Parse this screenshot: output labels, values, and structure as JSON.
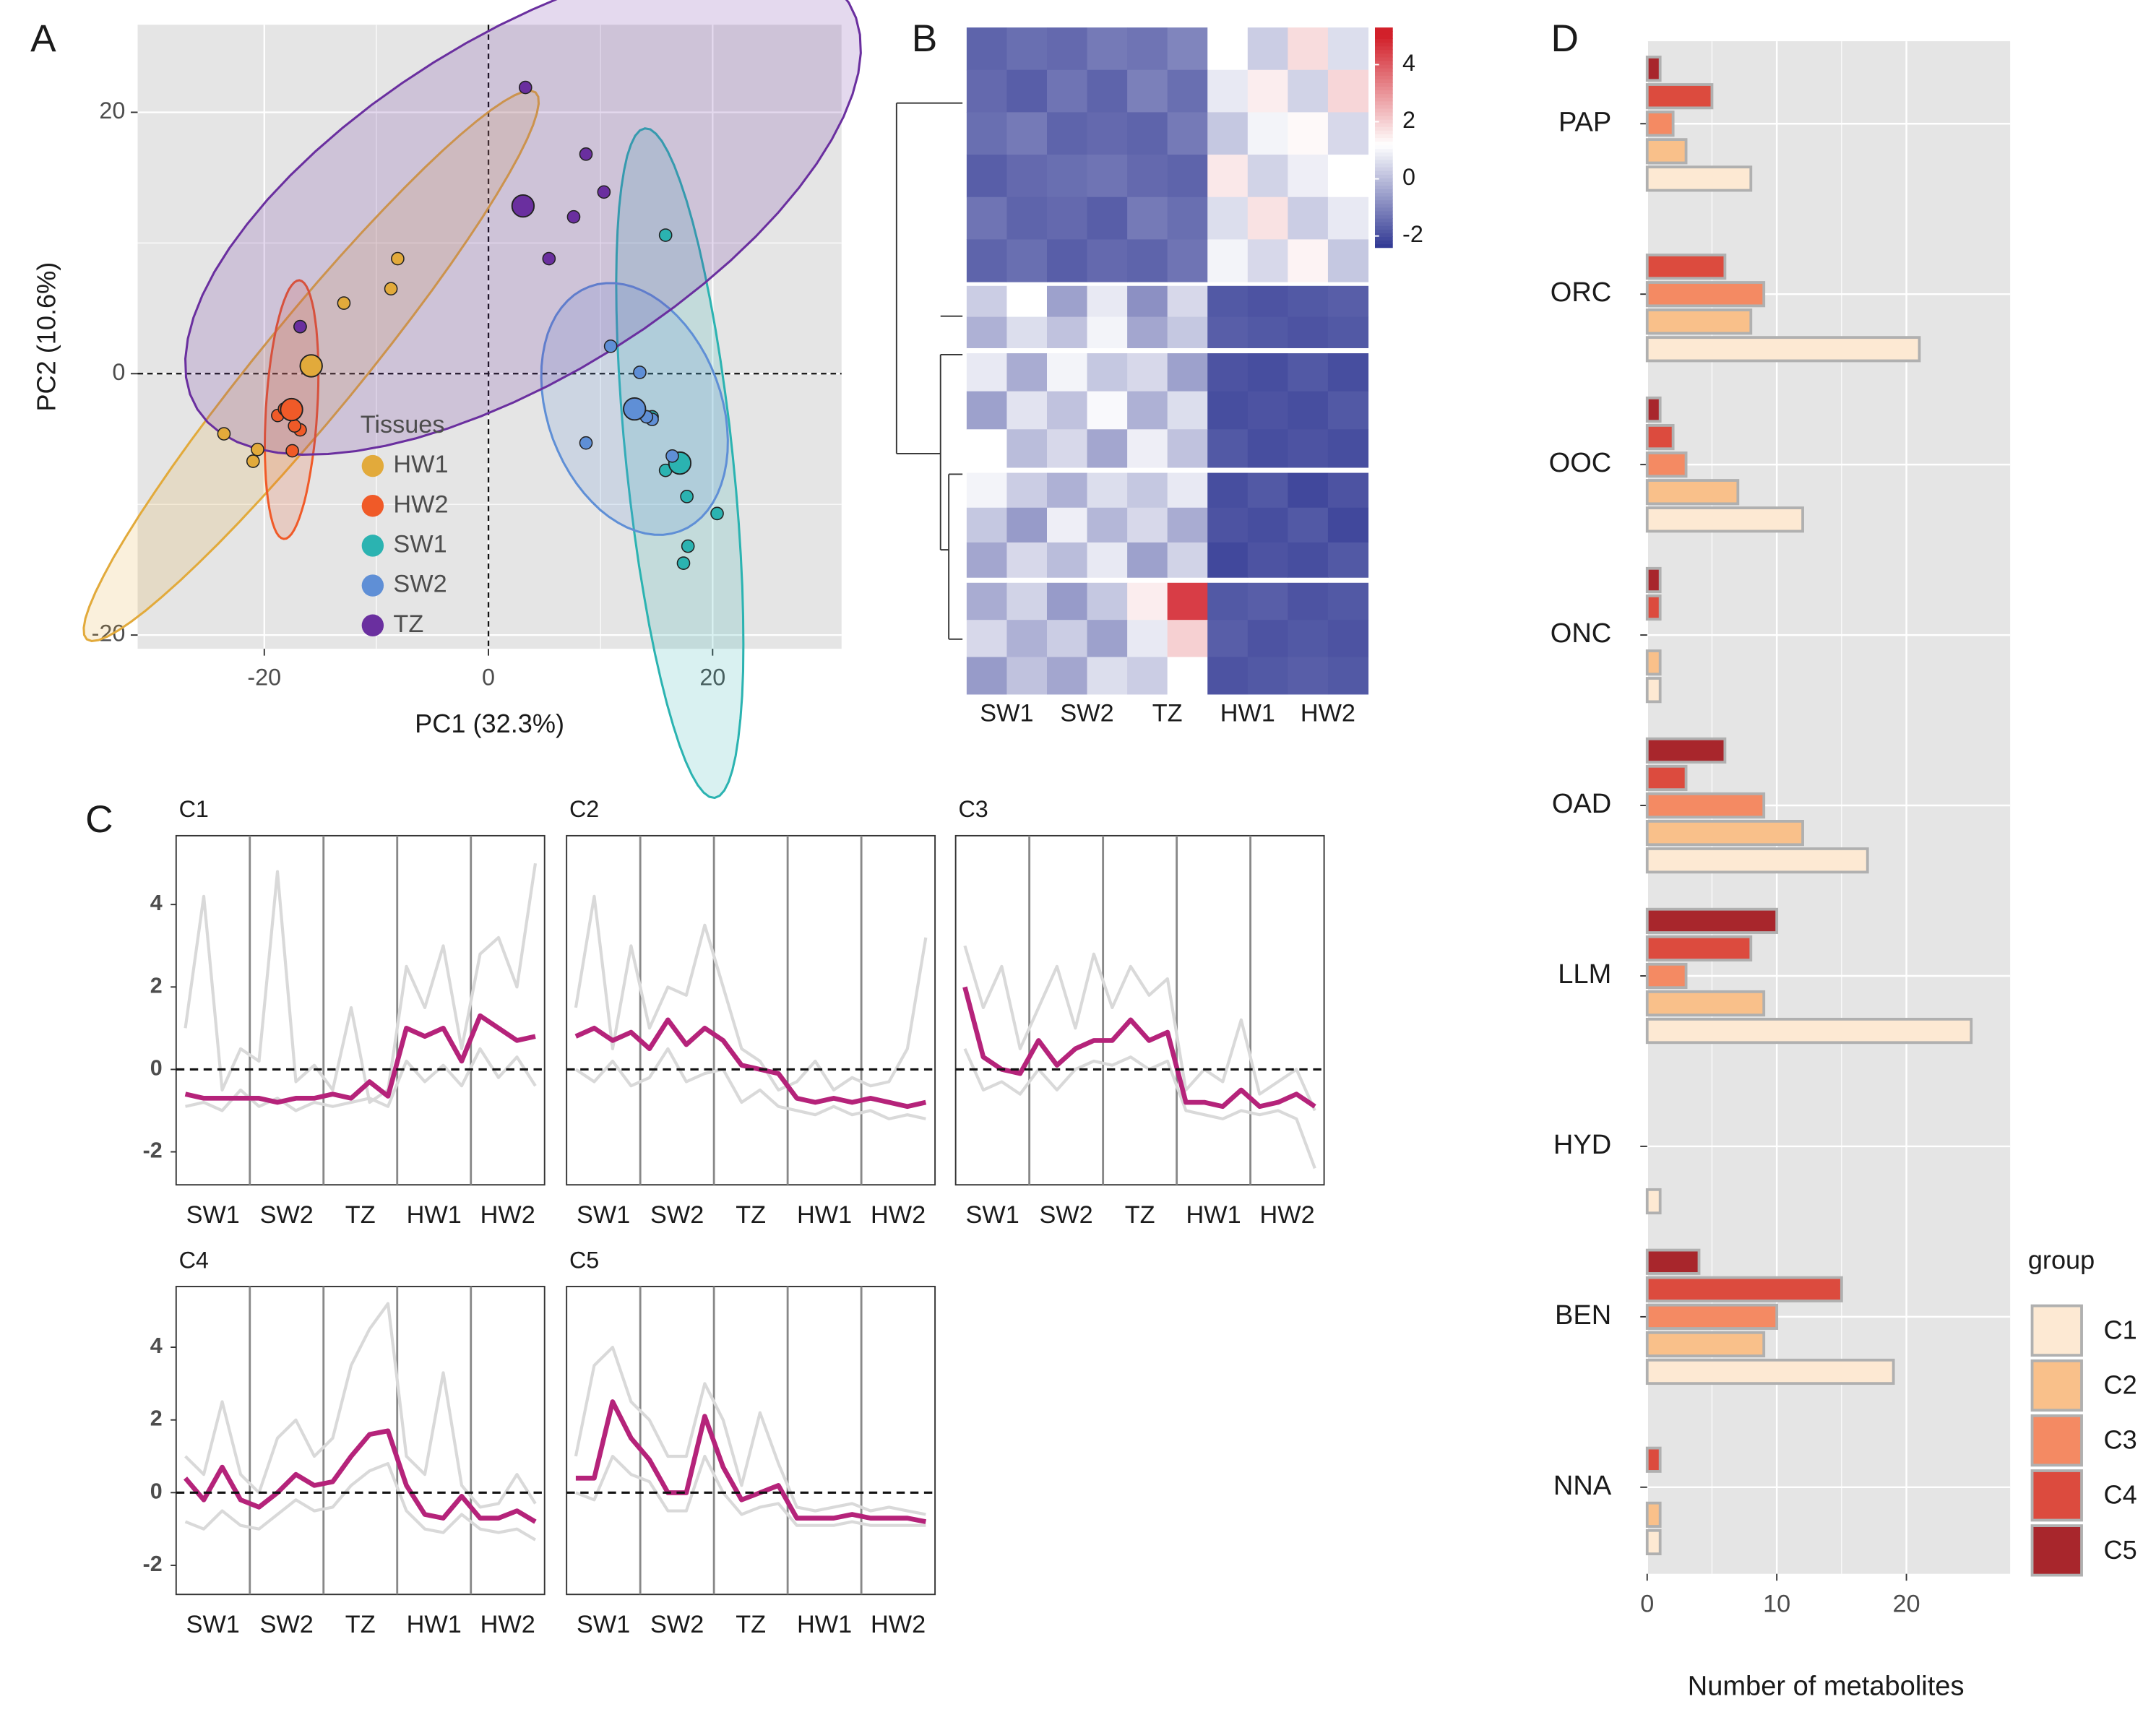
{
  "chart_data": [
    {
      "type": "scatter",
      "panel": "A",
      "xlabel": "PC1 (32.3%)",
      "ylabel": "PC2 (10.6%)",
      "xlim": [
        -31.3,
        31.5
      ],
      "ylim": [
        -21.05,
        26.7
      ],
      "xticks": [
        -20,
        0,
        20
      ],
      "yticks": [
        -20,
        0,
        20
      ],
      "grid": true,
      "legend_title": "Tissues",
      "legend": "bottom-left",
      "series": [
        {
          "name": "HW1",
          "color": "#e2aa3b",
          "x": [
            -23.6,
            -20.6,
            -21.0,
            -8.1,
            -8.7,
            -12.9
          ],
          "y": [
            -4.6,
            -5.8,
            -6.7,
            8.8,
            6.5,
            5.4
          ]
        },
        {
          "name": "HW2",
          "color": "#f05a28",
          "x": [
            -16.8,
            -18.8,
            -18.2,
            -16.8,
            -17.5,
            -17.3
          ],
          "y": [
            3.6,
            -3.2,
            -2.7,
            -4.3,
            -5.9,
            -4.0
          ]
        },
        {
          "name": "SW1",
          "color": "#2bb3b1",
          "x": [
            15.8,
            14.6,
            17.7,
            15.8,
            20.4,
            17.8,
            17.4
          ],
          "y": [
            10.6,
            -3.3,
            -9.4,
            -7.4,
            -10.7,
            -13.2,
            -14.5
          ]
        },
        {
          "name": "SW2",
          "color": "#5f8fd6",
          "x": [
            10.9,
            13.5,
            8.7,
            14.6,
            14.1,
            16.4
          ],
          "y": [
            2.1,
            0.1,
            -5.3,
            -3.5,
            -3.3,
            -6.3
          ]
        },
        {
          "name": "TZ",
          "color": "#6a2f9f",
          "x": [
            3.3,
            8.7,
            10.3,
            7.6,
            5.4,
            -16.8
          ],
          "y": [
            21.9,
            16.8,
            13.9,
            12.0,
            8.8,
            3.6
          ]
        }
      ]
    },
    {
      "type": "heatmap",
      "panel": "B",
      "x_labels": [
        "SW1",
        "SW2",
        "TZ",
        "HW1",
        "HW2"
      ],
      "clim": [
        -2.4,
        5.3
      ],
      "cticks": [
        -2,
        0,
        2,
        4
      ],
      "colorscale": [
        [
          -2.5,
          "#2a3290"
        ],
        [
          1.2,
          "#ffffff"
        ],
        [
          5,
          "#d2202a"
        ]
      ],
      "blocks": [
        [
          [
            -1.6,
            -1.4,
            -1.5,
            -1.2,
            -1.3,
            -1.0,
            1.2,
            0.3,
            1.8,
            0.6
          ],
          [
            -1.5,
            -1.7,
            -1.3,
            -1.6,
            -1.1,
            -1.4,
            0.8,
            1.5,
            0.4,
            1.9
          ],
          [
            -1.4,
            -1.2,
            -1.6,
            -1.5,
            -1.6,
            -1.2,
            0.2,
            1.0,
            1.3,
            0.5
          ],
          [
            -1.7,
            -1.5,
            -1.4,
            -1.3,
            -1.5,
            -1.6,
            1.6,
            0.4,
            0.9,
            1.2
          ],
          [
            -1.3,
            -1.6,
            -1.5,
            -1.7,
            -1.2,
            -1.4,
            0.6,
            1.7,
            0.3,
            0.8
          ],
          [
            -1.6,
            -1.4,
            -1.7,
            -1.5,
            -1.6,
            -1.3,
            1.0,
            0.5,
            1.4,
            0.2
          ]
        ],
        [
          [
            0.3,
            1.2,
            -0.5,
            0.8,
            -0.8,
            0.5,
            -1.8,
            -1.9,
            -1.8,
            -1.7
          ],
          [
            -0.2,
            0.6,
            0.1,
            1.0,
            -0.4,
            0.2,
            -1.7,
            -1.8,
            -1.9,
            -1.8
          ]
        ],
        [
          [
            0.8,
            -0.3,
            1.0,
            0.2,
            0.5,
            -0.5,
            -1.9,
            -2.0,
            -1.8,
            -2.0
          ],
          [
            -0.5,
            0.7,
            0.1,
            1.1,
            -0.2,
            0.6,
            -2.0,
            -1.9,
            -2.0,
            -1.8
          ],
          [
            1.2,
            0.0,
            0.5,
            -0.4,
            0.9,
            0.1,
            -1.8,
            -2.0,
            -1.9,
            -2.0
          ]
        ],
        [
          [
            1.0,
            0.3,
            -0.2,
            0.6,
            0.2,
            0.8,
            -2.0,
            -1.8,
            -2.1,
            -1.9
          ],
          [
            0.2,
            -0.6,
            0.9,
            -0.1,
            0.5,
            -0.3,
            -1.9,
            -2.0,
            -1.8,
            -2.1
          ],
          [
            -0.4,
            0.5,
            0.0,
            0.8,
            -0.5,
            0.4,
            -2.1,
            -1.9,
            -2.0,
            -1.8
          ]
        ],
        [
          [
            -0.3,
            0.4,
            -0.6,
            0.2,
            1.5,
            4.5,
            -1.8,
            -1.7,
            -1.9,
            -1.8
          ],
          [
            0.5,
            -0.2,
            0.3,
            -0.5,
            0.8,
            2.0,
            -1.7,
            -1.9,
            -1.8,
            -1.9
          ],
          [
            -0.6,
            0.1,
            -0.4,
            0.6,
            0.3,
            1.2,
            -1.9,
            -1.8,
            -1.7,
            -1.8
          ]
        ]
      ]
    },
    {
      "type": "line",
      "panel": "C",
      "title": "C1",
      "groups": [
        "SW1",
        "SW2",
        "TZ",
        "HW1",
        "HW2"
      ],
      "ylim": [
        -2.8,
        5.67
      ],
      "yticks": [
        -2,
        0,
        2,
        4
      ],
      "series": [
        {
          "color": "#d9d9d9",
          "values": [
            1.0,
            4.2,
            -0.5,
            0.5,
            0.2,
            4.8,
            -0.3,
            0.1,
            -0.5,
            1.5,
            -0.8,
            -0.5,
            2.5,
            1.5,
            3.0,
            0.5,
            2.8,
            3.2,
            2.0,
            5.0
          ]
        },
        {
          "color": "#d9d9d9",
          "values": [
            -0.9,
            -0.8,
            -1.0,
            -0.5,
            -0.9,
            -0.7,
            -1.0,
            -0.8,
            -0.9,
            -0.8,
            -0.7,
            -0.9,
            0.2,
            -0.3,
            0.1,
            -0.4,
            0.5,
            -0.2,
            0.3,
            -0.4
          ]
        },
        {
          "color": "#b5237a",
          "values": [
            -0.6,
            -0.7,
            -0.7,
            -0.7,
            -0.7,
            -0.8,
            -0.7,
            -0.7,
            -0.6,
            -0.7,
            -0.3,
            -0.65,
            1.0,
            0.8,
            1.0,
            0.2,
            1.3,
            1.0,
            0.7,
            0.8
          ]
        }
      ]
    },
    {
      "type": "line",
      "title": "C2",
      "groups": [
        "SW1",
        "SW2",
        "TZ",
        "HW1",
        "HW2"
      ],
      "ylim": [
        -2.8,
        5.67
      ],
      "series": [
        {
          "color": "#d9d9d9",
          "values": [
            1.5,
            4.2,
            0.5,
            3.0,
            1.0,
            2.0,
            1.8,
            3.5,
            2.0,
            0.5,
            0.2,
            -0.5,
            -0.3,
            0.2,
            -0.5,
            -0.2,
            -0.4,
            -0.3,
            0.5,
            3.2
          ]
        },
        {
          "color": "#d9d9d9",
          "values": [
            0.0,
            -0.3,
            0.2,
            -0.4,
            -0.2,
            0.5,
            -0.3,
            -0.1,
            0.0,
            -0.8,
            -0.5,
            -0.9,
            -1.0,
            -1.1,
            -0.9,
            -1.1,
            -1.0,
            -1.2,
            -1.1,
            -1.2
          ]
        },
        {
          "color": "#b5237a",
          "values": [
            0.8,
            1.0,
            0.7,
            0.9,
            0.5,
            1.2,
            0.6,
            1.0,
            0.7,
            0.1,
            0.0,
            -0.1,
            -0.7,
            -0.8,
            -0.7,
            -0.8,
            -0.7,
            -0.8,
            -0.9,
            -0.8
          ]
        }
      ]
    },
    {
      "type": "line",
      "title": "C3",
      "groups": [
        "SW1",
        "SW2",
        "TZ",
        "HW1",
        "HW2"
      ],
      "ylim": [
        -2.8,
        5.67
      ],
      "series": [
        {
          "color": "#d9d9d9",
          "values": [
            3.0,
            1.5,
            2.5,
            0.5,
            1.5,
            2.5,
            1.0,
            2.8,
            1.5,
            2.5,
            1.8,
            2.2,
            -0.5,
            0.0,
            -0.3,
            1.2,
            -0.6,
            -0.3,
            0.0,
            -1.0
          ]
        },
        {
          "color": "#d9d9d9",
          "values": [
            0.5,
            -0.5,
            -0.3,
            -0.6,
            0.0,
            -0.5,
            0.0,
            0.2,
            0.1,
            0.3,
            0.0,
            0.2,
            -1.0,
            -1.1,
            -1.2,
            -1.0,
            -1.1,
            -1.0,
            -1.2,
            -2.4
          ]
        },
        {
          "color": "#b5237a",
          "values": [
            2.0,
            0.3,
            0.0,
            -0.1,
            0.7,
            0.1,
            0.5,
            0.7,
            0.7,
            1.2,
            0.7,
            0.9,
            -0.8,
            -0.8,
            -0.9,
            -0.5,
            -0.9,
            -0.8,
            -0.6,
            -0.9
          ]
        }
      ]
    },
    {
      "type": "line",
      "title": "C4",
      "groups": [
        "SW1",
        "SW2",
        "TZ",
        "HW1",
        "HW2"
      ],
      "ylim": [
        -2.8,
        5.67
      ],
      "yticks": [
        -2,
        0,
        2,
        4
      ],
      "series": [
        {
          "color": "#d9d9d9",
          "values": [
            1.0,
            0.5,
            2.5,
            0.5,
            0.0,
            1.5,
            2.0,
            1.0,
            1.5,
            3.5,
            4.5,
            5.2,
            1.0,
            0.5,
            3.3,
            0.2,
            -0.4,
            -0.3,
            0.5,
            -0.3
          ]
        },
        {
          "color": "#d9d9d9",
          "values": [
            -0.8,
            -1.0,
            -0.5,
            -0.9,
            -1.0,
            -0.6,
            -0.2,
            -0.5,
            -0.4,
            0.2,
            0.6,
            0.8,
            -0.5,
            -1.0,
            -1.1,
            -0.6,
            -1.0,
            -1.1,
            -1.0,
            -1.3
          ]
        },
        {
          "color": "#b5237a",
          "values": [
            0.4,
            -0.2,
            0.7,
            -0.2,
            -0.4,
            0.0,
            0.5,
            0.2,
            0.3,
            1.0,
            1.6,
            1.7,
            0.2,
            -0.6,
            -0.7,
            -0.1,
            -0.7,
            -0.7,
            -0.5,
            -0.8
          ]
        }
      ]
    },
    {
      "type": "line",
      "title": "C5",
      "groups": [
        "SW1",
        "SW2",
        "TZ",
        "HW1",
        "HW2"
      ],
      "ylim": [
        -2.8,
        5.67
      ],
      "series": [
        {
          "color": "#d9d9d9",
          "values": [
            1.0,
            3.5,
            4.0,
            2.5,
            2.0,
            1.0,
            1.0,
            3.0,
            2.0,
            0.2,
            2.2,
            0.8,
            -0.4,
            -0.5,
            -0.4,
            -0.3,
            -0.5,
            -0.4,
            -0.5,
            -0.6
          ]
        },
        {
          "color": "#d9d9d9",
          "values": [
            0.0,
            -0.2,
            1.0,
            0.5,
            0.3,
            -0.5,
            -0.5,
            1.0,
            0.0,
            -0.6,
            -0.4,
            -0.3,
            -0.9,
            -0.9,
            -0.9,
            -0.8,
            -0.9,
            -0.9,
            -0.9,
            -0.9
          ]
        },
        {
          "color": "#b5237a",
          "values": [
            0.4,
            0.4,
            2.5,
            1.5,
            0.9,
            0.0,
            0.0,
            2.1,
            0.7,
            -0.2,
            0.0,
            0.2,
            -0.7,
            -0.7,
            -0.7,
            -0.6,
            -0.7,
            -0.7,
            -0.7,
            -0.8
          ]
        }
      ]
    },
    {
      "type": "hbar",
      "panel": "D",
      "xlabel": "Number of metabolites",
      "xlim": [
        0,
        28
      ],
      "xticks": [
        0,
        10,
        20
      ],
      "grid": true,
      "legend_title": "group",
      "legend": "bottom-right",
      "categories": [
        "PAP",
        "ORC",
        "OOC",
        "ONC",
        "OAD",
        "LLM",
        "HYD",
        "BEN",
        "NNA"
      ],
      "series": [
        {
          "name": "C1",
          "color": "#fde9d3",
          "values": [
            8,
            21,
            12,
            1,
            17,
            25,
            1,
            19,
            1
          ]
        },
        {
          "name": "C2",
          "color": "#f9c08a",
          "values": [
            3,
            8,
            7,
            1,
            12,
            9,
            0,
            9,
            1
          ]
        },
        {
          "name": "C3",
          "color": "#f48a63",
          "values": [
            2,
            9,
            3,
            0,
            9,
            3,
            0,
            10,
            0
          ]
        },
        {
          "name": "C4",
          "color": "#dc4b3e",
          "values": [
            5,
            6,
            2,
            1,
            3,
            8,
            0,
            15,
            1
          ]
        },
        {
          "name": "C5",
          "color": "#a8262c",
          "values": [
            1,
            0,
            1,
            1,
            6,
            10,
            0,
            4,
            0
          ]
        }
      ]
    }
  ]
}
